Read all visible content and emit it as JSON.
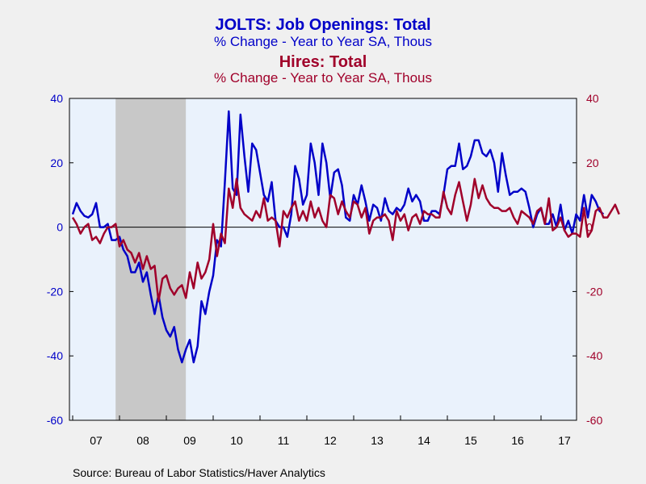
{
  "titles": {
    "series1_title": "JOLTS: Job Openings: Total",
    "series1_sub": "% Change - Year to Year    SA, Thous",
    "series2_title": "Hires: Total",
    "series2_sub": "% Change - Year to Year    SA, Thous"
  },
  "source": "Source:  Bureau of Labor Statistics/Haver Analytics",
  "colors": {
    "job_openings": "#0000c8",
    "hires": "#a0002a",
    "plot_bg": "#eaf2fc",
    "recession": "#c8c8c8",
    "axis_left_text": "#0000c8",
    "axis_right_text": "#a0002a"
  },
  "chart_data": {
    "type": "line",
    "x_tick_labels": [
      "07",
      "08",
      "09",
      "10",
      "11",
      "12",
      "13",
      "14",
      "15",
      "16",
      "17"
    ],
    "y_left": {
      "ylim": [
        -60,
        40
      ],
      "ticks": [
        40,
        20,
        0,
        -20,
        -40,
        -60
      ]
    },
    "y_right": {
      "ylim": [
        -60,
        40
      ],
      "ticks": [
        40,
        20,
        0,
        -20,
        -40,
        -60
      ]
    },
    "recession_shading": {
      "start": "2007-12",
      "end": "2009-06"
    },
    "grid": false,
    "series": [
      {
        "name": "JOLTS: Job Openings: Total",
        "axis": "left",
        "start": "2007-01",
        "values": [
          4,
          7.5,
          5,
          3.5,
          3,
          4,
          7.5,
          0,
          0,
          1,
          -4,
          -4,
          -3,
          -7,
          -9,
          -14,
          -14,
          -11,
          -17,
          -14,
          -21,
          -27,
          -21,
          -28,
          -32,
          -34,
          -31,
          -38,
          -42,
          -38,
          -35,
          -42,
          -37,
          -23,
          -27,
          -20,
          -15,
          -4,
          -6,
          14,
          36,
          12,
          10,
          35,
          22,
          11,
          26,
          24,
          17,
          10,
          8,
          14,
          2,
          0,
          0,
          -3,
          4,
          19,
          15,
          7,
          10,
          26,
          20,
          10,
          26,
          20,
          9,
          17,
          18,
          13,
          3,
          2,
          10,
          7,
          13,
          8,
          2,
          7,
          6,
          2,
          9,
          5,
          4,
          6,
          5,
          7,
          12,
          8,
          10,
          8,
          2,
          2,
          5,
          5,
          4,
          10,
          18,
          19,
          19,
          26,
          18,
          19,
          22,
          27,
          27,
          23,
          22,
          24,
          20,
          11,
          23,
          16,
          10,
          11,
          11,
          12,
          11,
          6,
          0,
          4,
          6,
          1,
          1,
          4,
          0,
          7,
          -1,
          2,
          -2,
          4,
          2,
          10,
          3,
          10,
          8,
          5,
          4
        ]
      },
      {
        "name": "Hires: Total",
        "axis": "right",
        "start": "2007-01",
        "values": [
          3,
          1,
          -2,
          0,
          1,
          -4,
          -3,
          -5,
          -2,
          0,
          0,
          1,
          -6,
          -4,
          -7,
          -8,
          -11,
          -8,
          -13,
          -9,
          -13,
          -12,
          -23,
          -16,
          -15,
          -19,
          -21,
          -19,
          -18,
          -22,
          -14,
          -19,
          -11,
          -16,
          -14,
          -10,
          1,
          -9,
          -2,
          -5,
          12,
          6,
          15,
          6,
          4,
          3,
          2,
          5,
          3,
          9,
          2,
          3,
          2,
          -6,
          5,
          3,
          6,
          8,
          2,
          5,
          2,
          8,
          3,
          6,
          2,
          0,
          10,
          9,
          4,
          8,
          5,
          3,
          8,
          7,
          3,
          6,
          -2,
          2,
          3,
          3,
          4,
          2,
          -4,
          5,
          2,
          4,
          -1,
          3,
          4,
          1,
          5,
          4,
          4,
          3,
          3,
          11,
          6,
          4,
          10,
          14,
          8,
          2,
          7,
          15,
          9,
          13,
          9,
          7,
          6,
          6,
          5,
          5,
          6,
          3,
          1,
          5,
          4,
          3,
          1,
          5,
          6,
          1,
          9,
          -1,
          0,
          3,
          -1,
          -3,
          -2,
          -2,
          -3,
          6,
          -3,
          -1,
          5,
          6,
          3,
          3,
          5,
          7,
          4
        ]
      }
    ]
  }
}
